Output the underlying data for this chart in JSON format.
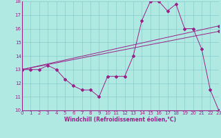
{
  "title": "",
  "xlabel": "Windchill (Refroidissement éolien,°C)",
  "bg_color": "#b0e8e2",
  "line_color": "#992288",
  "grid_color": "#88cccc",
  "xmin": 0,
  "xmax": 23,
  "ymin": 10,
  "ymax": 18,
  "xticks": [
    0,
    1,
    2,
    3,
    4,
    5,
    6,
    7,
    8,
    9,
    10,
    11,
    12,
    13,
    14,
    15,
    16,
    17,
    18,
    19,
    20,
    21,
    22,
    23
  ],
  "yticks": [
    10,
    11,
    12,
    13,
    14,
    15,
    16,
    17,
    18
  ],
  "curve1_x": [
    0,
    1,
    2,
    3,
    4,
    5,
    6,
    7,
    8,
    9,
    10,
    11,
    12,
    13,
    14,
    15,
    16,
    17,
    18,
    19,
    20,
    21,
    22,
    23
  ],
  "curve1_y": [
    13,
    13,
    13,
    13.3,
    13.0,
    12.3,
    11.8,
    11.5,
    11.5,
    11.0,
    12.5,
    12.5,
    12.5,
    14.0,
    16.6,
    18.0,
    18.0,
    17.3,
    17.8,
    16.0,
    16.0,
    14.5,
    11.5,
    10.0
  ],
  "line1_x": [
    0,
    23
  ],
  "line1_y": [
    13,
    16.2
  ],
  "line2_x": [
    0,
    23
  ],
  "line2_y": [
    13,
    15.8
  ]
}
